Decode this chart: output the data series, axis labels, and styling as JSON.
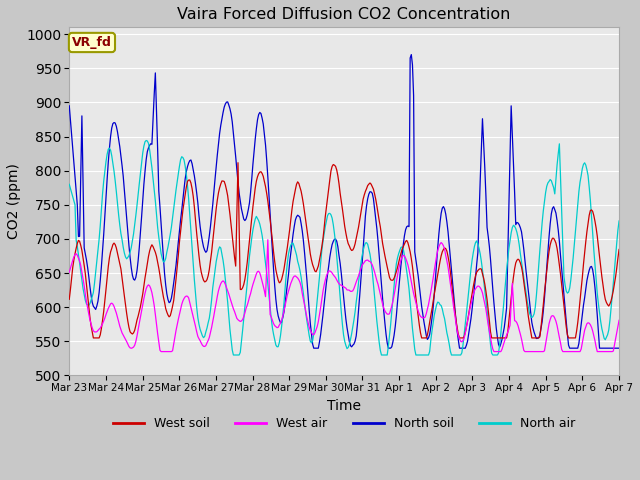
{
  "title": "Vaira Forced Diffusion CO2 Concentration",
  "xlabel": "Time",
  "ylabel": "CO2 (ppm)",
  "ylim": [
    500,
    1010
  ],
  "yticks": [
    500,
    550,
    600,
    650,
    700,
    750,
    800,
    850,
    900,
    950,
    1000
  ],
  "x_tick_labels": [
    "Mar 23",
    "Mar 24",
    "Mar 25",
    "Mar 26",
    "Mar 27",
    "Mar 28",
    "Mar 29",
    "Mar 30",
    "Mar 31",
    "Apr 1",
    "Apr 2",
    "Apr 3",
    "Apr 4",
    "Apr 5",
    "Apr 6",
    "Apr 7"
  ],
  "label_box_text": "VR_fd",
  "label_box_bg": "#ffffcc",
  "label_box_border": "#999900",
  "label_box_text_color": "#8b0000",
  "fig_bg": "#c8c8c8",
  "plot_bg": "#e8e8e8",
  "legend_items": [
    "West soil",
    "West air",
    "North soil",
    "North air"
  ],
  "line_colors": {
    "west_soil": "#cc0000",
    "west_air": "#ff00ff",
    "north_soil": "#0000cc",
    "north_air": "#00cccc"
  },
  "n_points": 480,
  "seed": 17
}
